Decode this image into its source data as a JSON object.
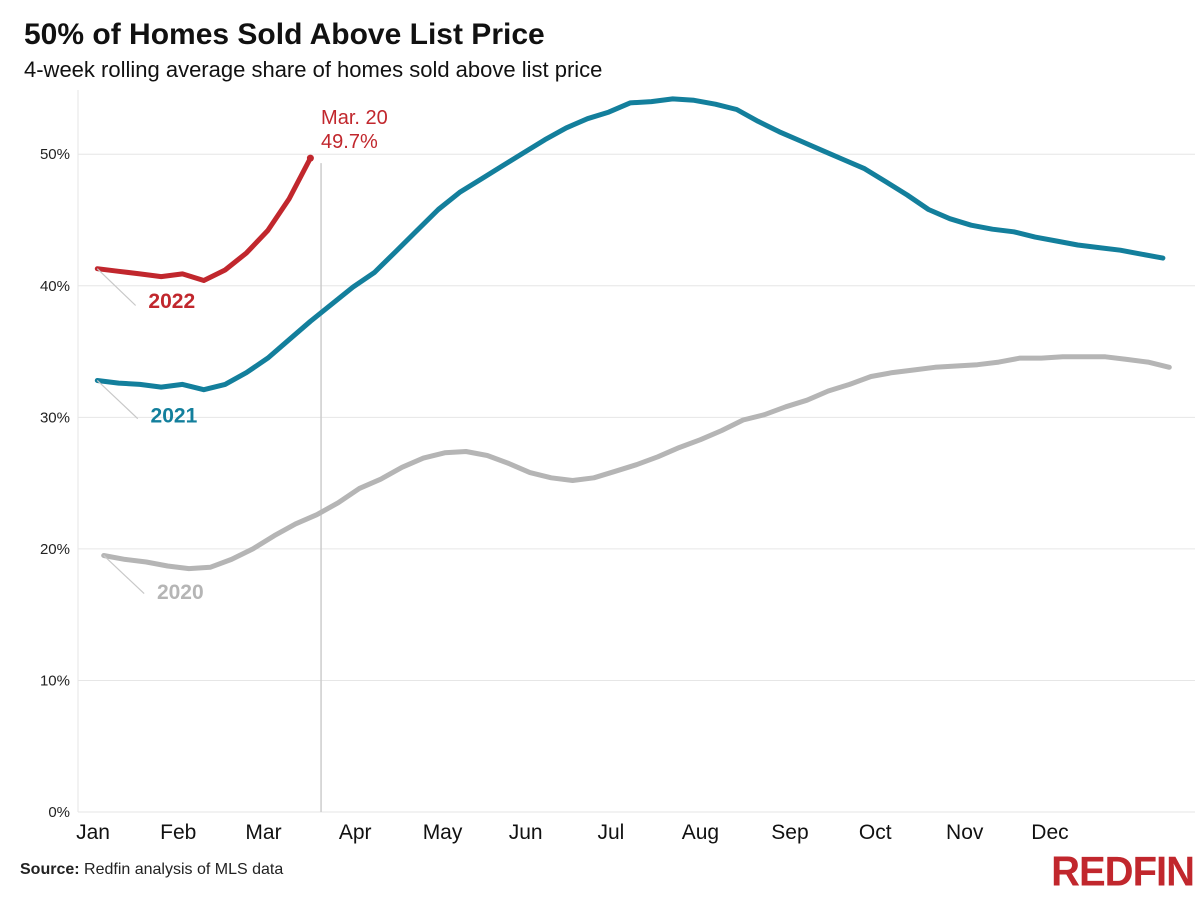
{
  "title": "50% of Homes Sold Above List Price",
  "subtitle": "4-week rolling average share of homes sold above list price",
  "source_label": "Source:",
  "source_text": " Redfin analysis of MLS data",
  "logo_text": "REDFIN",
  "colors": {
    "s2022": "#c1272d",
    "s2021": "#137f9c",
    "s2020": "#b5b5b5",
    "grid": "#e6e6e6",
    "marker": "#cccccc"
  },
  "chart_data": {
    "type": "line",
    "title": "50% of Homes Sold Above List Price",
    "subtitle": "4-week rolling average share of homes sold above list price",
    "xlabel": "",
    "ylabel": "",
    "x_unit": "week of year",
    "xlim": [
      1,
      52
    ],
    "ylim": [
      0,
      54.5
    ],
    "yticks": [
      0,
      10,
      20,
      30,
      40,
      50
    ],
    "ytick_labels": [
      "0%",
      "10%",
      "20%",
      "30%",
      "40%",
      "50%"
    ],
    "month_labels": [
      {
        "label": "Jan",
        "x": 1
      },
      {
        "label": "Feb",
        "x": 5
      },
      {
        "label": "Mar",
        "x": 9
      },
      {
        "label": "Apr",
        "x": 13.3
      },
      {
        "label": "May",
        "x": 17.4
      },
      {
        "label": "Jun",
        "x": 21.3
      },
      {
        "label": "Jul",
        "x": 25.3
      },
      {
        "label": "Aug",
        "x": 29.5
      },
      {
        "label": "Sep",
        "x": 33.7
      },
      {
        "label": "Oct",
        "x": 37.7
      },
      {
        "label": "Nov",
        "x": 41.9
      },
      {
        "label": "Dec",
        "x": 45.9
      }
    ],
    "grid": true,
    "legend": "inline labels",
    "annotation": {
      "x": 11.7,
      "y": 49.7,
      "lines": [
        "Mar. 20",
        "49.7%"
      ]
    },
    "series": [
      {
        "name": "2020",
        "x": [
          1.5,
          2.5,
          3.5,
          4.5,
          5.5,
          6.5,
          7.5,
          8.5,
          9.5,
          10.5,
          11.5,
          12.5,
          13.5,
          14.5,
          15.5,
          16.5,
          17.5,
          18.5,
          19.5,
          20.5,
          21.5,
          22.5,
          23.5,
          24.5,
          25.5,
          26.5,
          27.5,
          28.5,
          29.5,
          30.5,
          31.5,
          32.5,
          33.5,
          34.5,
          35.5,
          36.5,
          37.5,
          38.5,
          39.5,
          40.5,
          41.5,
          42.5,
          43.5,
          44.5,
          45.5,
          46.5,
          47.5,
          48.5,
          49.5,
          50.5,
          51.5
        ],
        "values": [
          19.5,
          19.2,
          19.0,
          18.7,
          18.5,
          18.6,
          19.2,
          20.0,
          21.0,
          21.9,
          22.6,
          23.5,
          24.6,
          25.3,
          26.2,
          26.9,
          27.3,
          27.4,
          27.1,
          26.5,
          25.8,
          25.4,
          25.2,
          25.4,
          25.9,
          26.4,
          27.0,
          27.7,
          28.3,
          29.0,
          29.8,
          30.2,
          30.8,
          31.3,
          32.0,
          32.5,
          33.1,
          33.4,
          33.6,
          33.8,
          33.9,
          34.0,
          34.2,
          34.5,
          34.5,
          34.6,
          34.6,
          34.6,
          34.4,
          34.2,
          33.8
        ]
      },
      {
        "name": "2021",
        "x": [
          1.2,
          2.2,
          3.2,
          4.2,
          5.2,
          6.2,
          7.2,
          8.2,
          9.2,
          10.2,
          11.2,
          12.2,
          13.2,
          14.2,
          15.2,
          16.2,
          17.2,
          18.2,
          19.2,
          20.2,
          21.2,
          22.2,
          23.2,
          24.2,
          25.2,
          26.2,
          27.2,
          28.2,
          29.2,
          30.2,
          31.2,
          32.2,
          33.2,
          34.2,
          35.2,
          36.2,
          37.2,
          38.2,
          39.2,
          40.2,
          41.2,
          42.2,
          43.2,
          44.2,
          45.2,
          46.2,
          47.2,
          48.2,
          49.2,
          50.2,
          51.2
        ],
        "values": [
          32.8,
          32.6,
          32.5,
          32.3,
          32.5,
          32.1,
          32.5,
          33.4,
          34.5,
          35.9,
          37.3,
          38.6,
          39.9,
          41.0,
          42.6,
          44.2,
          45.8,
          47.1,
          48.1,
          49.1,
          50.1,
          51.1,
          52.0,
          52.7,
          53.2,
          53.9,
          54.0,
          54.2,
          54.1,
          53.8,
          53.4,
          52.5,
          51.7,
          51.0,
          50.3,
          49.6,
          48.9,
          47.9,
          46.9,
          45.8,
          45.1,
          44.6,
          44.3,
          44.1,
          43.7,
          43.4,
          43.1,
          42.9,
          42.7,
          42.4,
          42.1
        ]
      },
      {
        "name": "2022",
        "x": [
          1.2,
          2.2,
          3.2,
          4.2,
          5.2,
          6.2,
          7.2,
          8.2,
          9.2,
          10.2,
          11.2
        ],
        "values": [
          41.3,
          41.1,
          40.9,
          40.7,
          40.9,
          40.4,
          41.2,
          42.5,
          44.2,
          46.6,
          49.7
        ]
      }
    ],
    "series_labels": [
      {
        "name": "2022",
        "text": "2022",
        "x": 3.6,
        "y": 38.3,
        "anchor_x": 1.2,
        "anchor_y": 41.3,
        "leader_to_x": 3.0,
        "leader_to_y": 38.5
      },
      {
        "name": "2021",
        "text": "2021",
        "x": 3.7,
        "y": 29.6,
        "anchor_x": 1.2,
        "anchor_y": 32.8,
        "leader_to_x": 3.1,
        "leader_to_y": 29.9
      },
      {
        "name": "2020",
        "text": "2020",
        "x": 4.0,
        "y": 16.2,
        "anchor_x": 1.5,
        "anchor_y": 19.5,
        "leader_to_x": 3.4,
        "leader_to_y": 16.6
      }
    ]
  }
}
